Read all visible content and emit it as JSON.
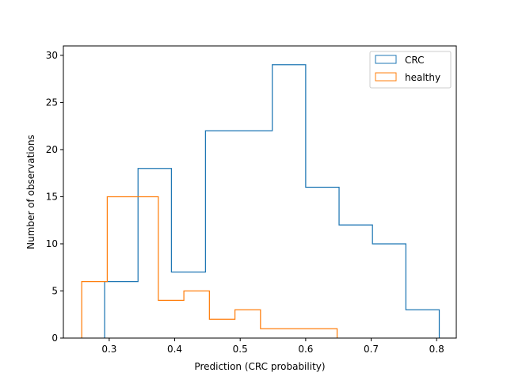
{
  "chart_data": {
    "type": "histogram",
    "xlabel": "Prediction (CRC probability)",
    "ylabel": "Number of observations",
    "xlim": [
      0.23,
      0.83
    ],
    "ylim": [
      0,
      31
    ],
    "x_ticks": [
      0.3,
      0.4,
      0.5,
      0.6,
      0.7,
      0.8
    ],
    "y_ticks": [
      0,
      5,
      10,
      15,
      20,
      25,
      30
    ],
    "x_tick_labels": [
      "0.3",
      "0.4",
      "0.5",
      "0.6",
      "0.7",
      "0.8"
    ],
    "y_tick_labels": [
      "0",
      "5",
      "10",
      "15",
      "20",
      "25",
      "30"
    ],
    "grid": false,
    "legend_position": "top-right",
    "series": [
      {
        "name": "CRC",
        "color": "#1f77b4",
        "bin_edges": [
          0.293,
          0.344,
          0.395,
          0.447,
          0.498,
          0.549,
          0.6,
          0.651,
          0.702,
          0.753,
          0.804
        ],
        "counts": [
          6,
          18,
          7,
          22,
          22,
          29,
          16,
          12,
          10,
          3
        ]
      },
      {
        "name": "healthy",
        "color": "#ff7f0e",
        "bin_edges": [
          0.258,
          0.297,
          0.336,
          0.375,
          0.414,
          0.453,
          0.492,
          0.531,
          0.57,
          0.609,
          0.648
        ],
        "counts": [
          6,
          15,
          15,
          4,
          5,
          2,
          3,
          1,
          1,
          1
        ]
      }
    ]
  }
}
